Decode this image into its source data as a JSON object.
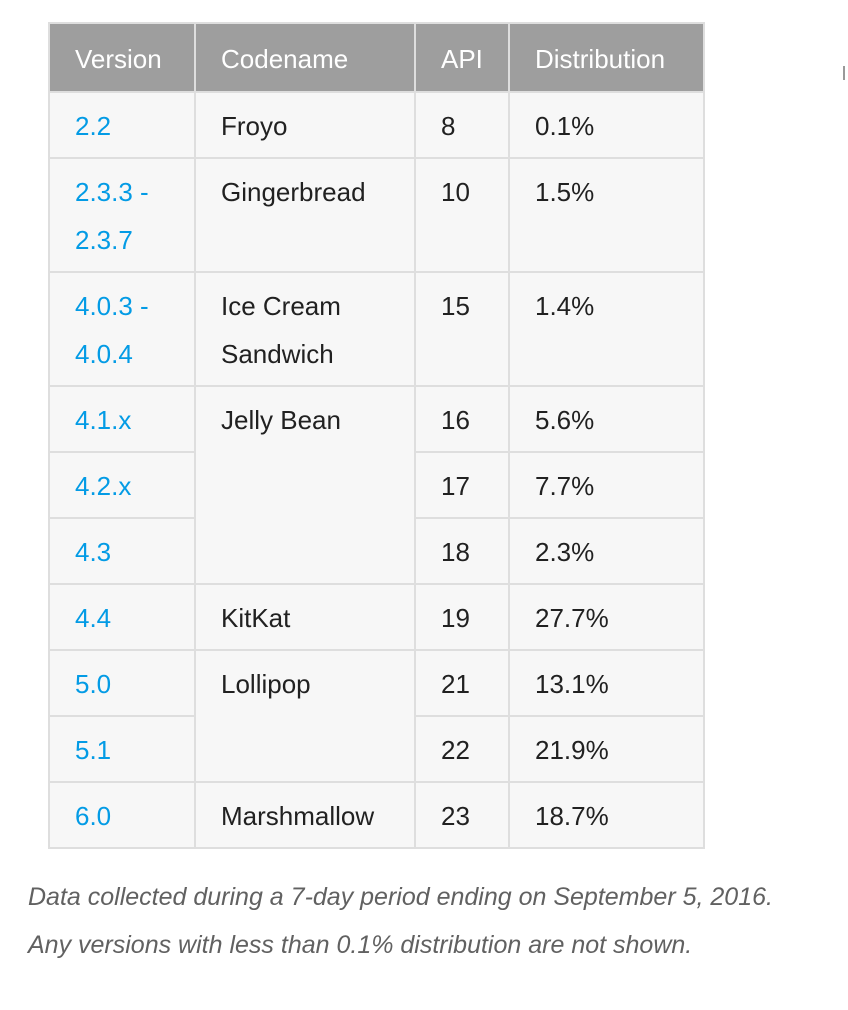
{
  "table": {
    "headers": [
      "Version",
      "Codename",
      "API",
      "Distribution"
    ],
    "rows": [
      {
        "version": "2.2",
        "codename": "Froyo",
        "api": "8",
        "distribution": "0.1%"
      },
      {
        "version": "2.3.3 - 2.3.7",
        "codename": "Gingerbread",
        "api": "10",
        "distribution": "1.5%"
      },
      {
        "version": "4.0.3 - 4.0.4",
        "codename": "Ice Cream Sandwich",
        "api": "15",
        "distribution": "1.4%"
      },
      {
        "version": "4.1.x",
        "codename": "Jelly Bean",
        "api": "16",
        "distribution": "5.6%"
      },
      {
        "version": "4.2.x",
        "api": "17",
        "distribution": "7.7%"
      },
      {
        "version": "4.3",
        "api": "18",
        "distribution": "2.3%"
      },
      {
        "version": "4.4",
        "codename": "KitKat",
        "api": "19",
        "distribution": "27.7%"
      },
      {
        "version": "5.0",
        "codename": "Lollipop",
        "api": "21",
        "distribution": "13.1%"
      },
      {
        "version": "5.1",
        "api": "22",
        "distribution": "21.9%"
      },
      {
        "version": "6.0",
        "codename": "Marshmallow",
        "api": "23",
        "distribution": "18.7%"
      }
    ]
  },
  "footer": {
    "line1": "Data collected during a 7-day period ending on September 5, 2016.",
    "line2": "Any versions with less than 0.1% distribution are not shown."
  }
}
